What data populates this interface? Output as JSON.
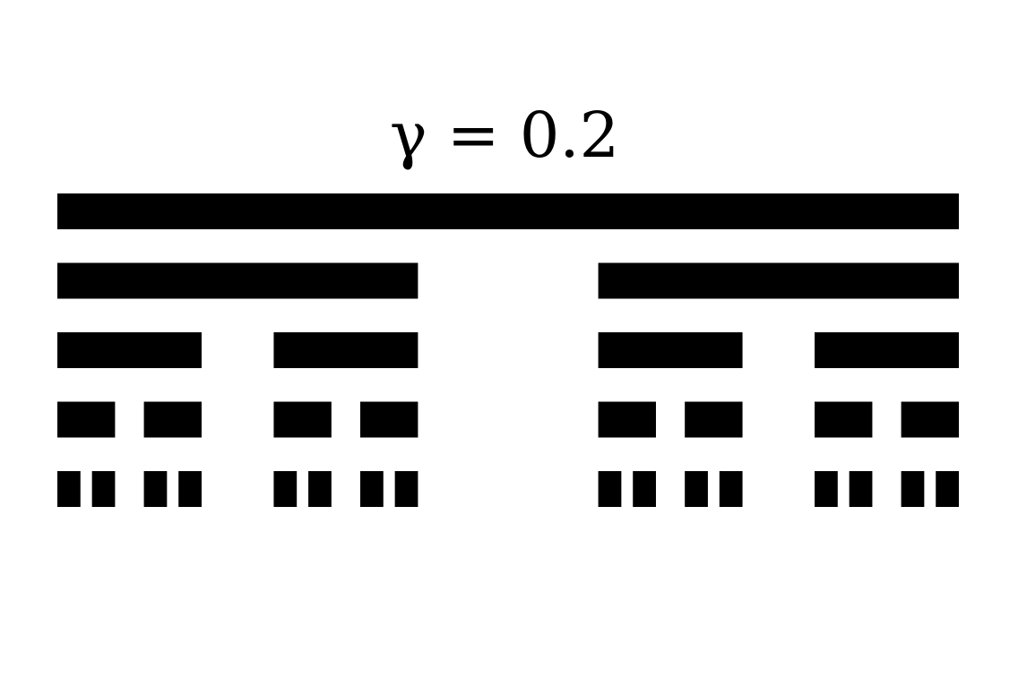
{
  "title": "γ = 0.2",
  "diagram": {
    "type": "cantor-set",
    "gamma": 0.2,
    "levels": 5,
    "bar_color": "#000000",
    "background_color": "#ffffff"
  }
}
